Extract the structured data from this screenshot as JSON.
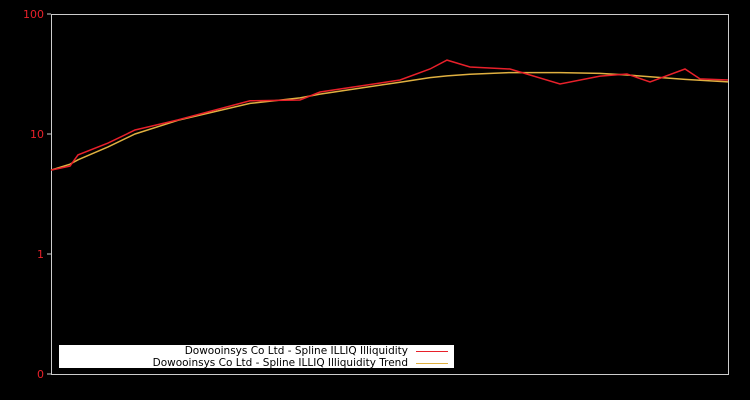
{
  "chart_data": {
    "type": "line",
    "title": "",
    "xlabel": "",
    "ylabel": "",
    "yscale": "log",
    "ylim": [
      0.1,
      100
    ],
    "y_ticks": [
      {
        "label": "100",
        "value": 100
      },
      {
        "label": "10",
        "value": 10
      },
      {
        "label": "1",
        "value": 1
      },
      {
        "label": "0",
        "value": 0.1
      }
    ],
    "grid": false,
    "legend_position": "lower-left",
    "x": [
      0,
      19,
      27,
      57,
      84,
      127,
      199,
      249,
      269,
      349,
      379,
      396,
      419,
      459,
      509,
      549,
      576,
      599,
      634,
      649,
      677
    ],
    "series": [
      {
        "name": "Dowooinsys Co Ltd - Spline ILLIQ Illiquidity",
        "color": "#e8202a",
        "values": [
          5.0,
          5.4,
          6.7,
          8.4,
          10.8,
          13.1,
          18.9,
          19.2,
          22.4,
          28.2,
          34.8,
          41.3,
          36.2,
          34.8,
          26.1,
          30.4,
          31.6,
          27.1,
          34.8,
          28.8,
          28.2
        ]
      },
      {
        "name": "Dowooinsys Co Ltd - Spline ILLIQ Illiquidity Trend",
        "color": "#e0b040",
        "values": [
          5.0,
          5.6,
          6.1,
          7.8,
          10.0,
          13.0,
          18.0,
          20.0,
          21.5,
          27.0,
          29.5,
          30.5,
          31.5,
          32.5,
          32.5,
          32.0,
          31.0,
          30.0,
          28.5,
          28.0,
          27.2
        ]
      }
    ]
  },
  "legend": {
    "items": [
      {
        "label": "Dowooinsys Co Ltd - Spline ILLIQ Illiquidity",
        "color": "#e8202a"
      },
      {
        "label": "Dowooinsys Co Ltd - Spline ILLIQ Illiquidity Trend",
        "color": "#e0b040"
      }
    ]
  },
  "axis": {
    "ticks": [
      "100",
      "10",
      "1",
      "0"
    ]
  }
}
